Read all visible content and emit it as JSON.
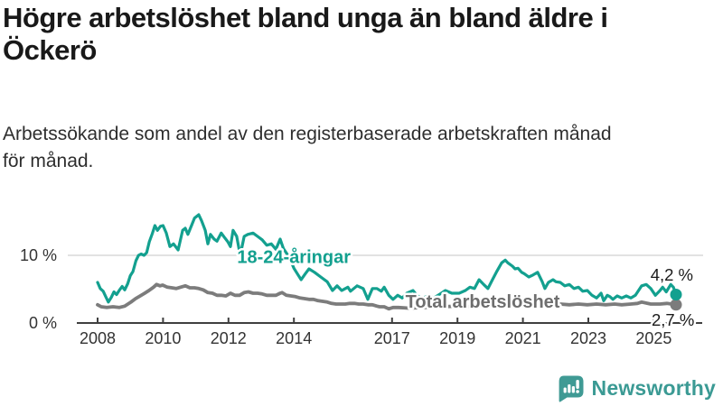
{
  "header": {
    "title": "Högre arbetslöshet bland unga än bland äldre i\nÖckerö",
    "subtitle": "Arbetssökande som andel av den registerbaserade arbetskraften månad\nför månad."
  },
  "footer": {
    "brand": "Newsworthy",
    "brand_color": "#3b9a94",
    "logo_icon": "speech-bubble-bar-chart-icon"
  },
  "chart_data": {
    "type": "line",
    "unit": "%",
    "title": "Högre arbetslöshet bland unga än bland äldre i Öckerö",
    "xlabel": "",
    "ylabel": "Arbetssökande som andel av den registerbaserade arbetskraften",
    "xlim": [
      2007.8,
      2026.3
    ],
    "ylim": [
      0,
      17
    ],
    "grid": "horizontal-10-only",
    "legend_position": "inline-labels",
    "x_ticks": [
      {
        "t": 2008,
        "label": "2008"
      },
      {
        "t": 2010,
        "label": "2010"
      },
      {
        "t": 2012,
        "label": "2012"
      },
      {
        "t": 2014,
        "label": "2014"
      },
      {
        "t": 2017,
        "label": "2017"
      },
      {
        "t": 2019,
        "label": "2019"
      },
      {
        "t": 2021,
        "label": "2021"
      },
      {
        "t": 2023,
        "label": "2023"
      },
      {
        "t": 2025,
        "label": "2025"
      }
    ],
    "y_ticks": [
      {
        "value": 0,
        "label": "0 %",
        "grid": false
      },
      {
        "value": 10,
        "label": "10 %",
        "grid": true
      }
    ],
    "annotations": [
      {
        "text": "18-24-åringar",
        "x": 2014.0,
        "y": 8.9,
        "color": "#13a08f"
      },
      {
        "text": "Total arbetslöshet",
        "x": 2019.77,
        "y": 2.27,
        "color": "#6e6e6e"
      }
    ],
    "series": [
      {
        "name": "Total arbetslöshet",
        "color": "#7c7c7c",
        "end_label": "2,7 %",
        "end_value": 2.7,
        "points": [
          [
            2008.0,
            2.7
          ],
          [
            2008.11,
            2.4
          ],
          [
            2008.28,
            2.3
          ],
          [
            2008.47,
            2.4
          ],
          [
            2008.66,
            2.3
          ],
          [
            2008.83,
            2.5
          ],
          [
            2009.02,
            3.1
          ],
          [
            2009.16,
            3.6
          ],
          [
            2009.3,
            4.0
          ],
          [
            2009.44,
            4.4
          ],
          [
            2009.57,
            4.8
          ],
          [
            2009.71,
            5.3
          ],
          [
            2009.8,
            5.7
          ],
          [
            2009.91,
            5.5
          ],
          [
            2009.99,
            5.6
          ],
          [
            2010.13,
            5.3
          ],
          [
            2010.27,
            5.2
          ],
          [
            2010.4,
            5.1
          ],
          [
            2010.54,
            5.3
          ],
          [
            2010.68,
            5.5
          ],
          [
            2010.82,
            5.2
          ],
          [
            2010.96,
            5.2
          ],
          [
            2011.09,
            5.1
          ],
          [
            2011.23,
            4.9
          ],
          [
            2011.37,
            4.5
          ],
          [
            2011.51,
            4.4
          ],
          [
            2011.65,
            4.1
          ],
          [
            2011.78,
            4.1
          ],
          [
            2011.92,
            4.0
          ],
          [
            2012.06,
            4.4
          ],
          [
            2012.2,
            4.1
          ],
          [
            2012.34,
            4.1
          ],
          [
            2012.48,
            4.5
          ],
          [
            2012.61,
            4.6
          ],
          [
            2012.75,
            4.4
          ],
          [
            2012.89,
            4.4
          ],
          [
            2013.03,
            4.3
          ],
          [
            2013.17,
            4.1
          ],
          [
            2013.31,
            4.1
          ],
          [
            2013.45,
            4.1
          ],
          [
            2013.58,
            4.4
          ],
          [
            2013.64,
            4.5
          ],
          [
            2013.77,
            4.1
          ],
          [
            2013.91,
            4.0
          ],
          [
            2014.05,
            3.9
          ],
          [
            2014.19,
            3.7
          ],
          [
            2014.33,
            3.6
          ],
          [
            2014.46,
            3.5
          ],
          [
            2014.6,
            3.5
          ],
          [
            2014.74,
            3.3
          ],
          [
            2014.88,
            3.2
          ],
          [
            2015.02,
            3.1
          ],
          [
            2015.15,
            2.9
          ],
          [
            2015.29,
            2.8
          ],
          [
            2015.43,
            2.8
          ],
          [
            2015.57,
            2.8
          ],
          [
            2015.71,
            2.9
          ],
          [
            2015.85,
            2.9
          ],
          [
            2015.98,
            2.8
          ],
          [
            2016.12,
            2.8
          ],
          [
            2016.26,
            2.7
          ],
          [
            2016.4,
            2.7
          ],
          [
            2016.54,
            2.5
          ],
          [
            2016.62,
            2.4
          ],
          [
            2016.76,
            2.4
          ],
          [
            2016.9,
            2.1
          ],
          [
            2017.03,
            2.3
          ],
          [
            2017.2,
            2.3
          ],
          [
            2017.5,
            2.2
          ],
          [
            2018.0,
            2.3
          ],
          [
            2018.5,
            2.4
          ],
          [
            2019.0,
            2.5
          ],
          [
            2019.5,
            2.4
          ],
          [
            2020.0,
            2.8
          ],
          [
            2020.3,
            3.2
          ],
          [
            2020.5,
            3.4
          ],
          [
            2020.8,
            3.3
          ],
          [
            2021.0,
            3.2
          ],
          [
            2021.3,
            3.0
          ],
          [
            2021.6,
            2.9
          ],
          [
            2022.0,
            2.8
          ],
          [
            2022.14,
            2.8
          ],
          [
            2022.42,
            2.7
          ],
          [
            2022.7,
            2.8
          ],
          [
            2022.97,
            2.7
          ],
          [
            2023.25,
            2.8
          ],
          [
            2023.53,
            2.7
          ],
          [
            2023.8,
            2.8
          ],
          [
            2024.02,
            2.7
          ],
          [
            2024.3,
            2.8
          ],
          [
            2024.5,
            2.9
          ],
          [
            2024.63,
            3.1
          ],
          [
            2024.91,
            2.8
          ],
          [
            2025.19,
            2.8
          ],
          [
            2025.4,
            2.9
          ],
          [
            2025.55,
            2.8
          ],
          [
            2025.68,
            2.7
          ]
        ]
      },
      {
        "name": "18-24-åringar",
        "color": "#13a08f",
        "end_label": "4,2 %",
        "end_value": 4.2,
        "points": [
          [
            2008.0,
            6.0
          ],
          [
            2008.08,
            5.1
          ],
          [
            2008.17,
            4.7
          ],
          [
            2008.25,
            3.9
          ],
          [
            2008.33,
            3.1
          ],
          [
            2008.42,
            3.8
          ],
          [
            2008.5,
            4.6
          ],
          [
            2008.58,
            4.2
          ],
          [
            2008.67,
            4.9
          ],
          [
            2008.75,
            5.4
          ],
          [
            2008.83,
            4.9
          ],
          [
            2008.92,
            5.8
          ],
          [
            2009.0,
            7.0
          ],
          [
            2009.08,
            7.6
          ],
          [
            2009.17,
            9.2
          ],
          [
            2009.25,
            10.0
          ],
          [
            2009.33,
            10.2
          ],
          [
            2009.42,
            10.0
          ],
          [
            2009.5,
            10.4
          ],
          [
            2009.58,
            12.0
          ],
          [
            2009.67,
            13.2
          ],
          [
            2009.75,
            14.4
          ],
          [
            2009.83,
            13.7
          ],
          [
            2009.92,
            14.3
          ],
          [
            2010.0,
            14.4
          ],
          [
            2010.1,
            13.3
          ],
          [
            2010.21,
            11.3
          ],
          [
            2010.32,
            11.7
          ],
          [
            2010.46,
            10.8
          ],
          [
            2010.6,
            13.7
          ],
          [
            2010.68,
            14.0
          ],
          [
            2010.76,
            13.1
          ],
          [
            2010.87,
            14.4
          ],
          [
            2010.96,
            15.5
          ],
          [
            2011.09,
            16.0
          ],
          [
            2011.18,
            15.1
          ],
          [
            2011.29,
            13.7
          ],
          [
            2011.37,
            11.7
          ],
          [
            2011.45,
            13.1
          ],
          [
            2011.56,
            12.4
          ],
          [
            2011.65,
            12.1
          ],
          [
            2011.78,
            13.3
          ],
          [
            2011.87,
            12.7
          ],
          [
            2011.98,
            12.0
          ],
          [
            2012.06,
            11.3
          ],
          [
            2012.14,
            13.7
          ],
          [
            2012.25,
            12.8
          ],
          [
            2012.36,
            10.0
          ],
          [
            2012.48,
            12.8
          ],
          [
            2012.59,
            13.1
          ],
          [
            2012.75,
            13.3
          ],
          [
            2012.89,
            12.8
          ],
          [
            2013.03,
            12.3
          ],
          [
            2013.17,
            11.5
          ],
          [
            2013.31,
            11.7
          ],
          [
            2013.45,
            10.9
          ],
          [
            2013.58,
            12.4
          ],
          [
            2013.68,
            11.0
          ],
          [
            2013.86,
            9.7
          ],
          [
            2014.0,
            8.1
          ],
          [
            2014.13,
            7.1
          ],
          [
            2014.22,
            6.4
          ],
          [
            2014.35,
            7.3
          ],
          [
            2014.46,
            8.0
          ],
          [
            2014.63,
            7.5
          ],
          [
            2014.82,
            6.8
          ],
          [
            2015.02,
            6.1
          ],
          [
            2015.18,
            4.8
          ],
          [
            2015.32,
            5.5
          ],
          [
            2015.46,
            4.8
          ],
          [
            2015.65,
            5.3
          ],
          [
            2015.73,
            4.7
          ],
          [
            2015.93,
            5.5
          ],
          [
            2016.12,
            5.1
          ],
          [
            2016.26,
            3.5
          ],
          [
            2016.4,
            5.1
          ],
          [
            2016.54,
            5.1
          ],
          [
            2016.67,
            4.7
          ],
          [
            2016.76,
            5.3
          ],
          [
            2016.9,
            4.1
          ],
          [
            2017.03,
            3.5
          ],
          [
            2017.17,
            4.1
          ],
          [
            2017.31,
            3.7
          ],
          [
            2017.45,
            4.4
          ],
          [
            2017.64,
            4.8
          ],
          [
            2017.78,
            4.0
          ],
          [
            2017.94,
            3.7
          ],
          [
            2018.14,
            4.1
          ],
          [
            2018.27,
            3.7
          ],
          [
            2018.47,
            4.3
          ],
          [
            2018.63,
            4.8
          ],
          [
            2018.83,
            4.4
          ],
          [
            2019.05,
            4.4
          ],
          [
            2019.24,
            4.8
          ],
          [
            2019.38,
            5.3
          ],
          [
            2019.52,
            5.1
          ],
          [
            2019.66,
            6.4
          ],
          [
            2019.8,
            5.7
          ],
          [
            2019.93,
            5.1
          ],
          [
            2020.07,
            6.4
          ],
          [
            2020.21,
            7.7
          ],
          [
            2020.35,
            8.9
          ],
          [
            2020.46,
            9.3
          ],
          [
            2020.54,
            8.9
          ],
          [
            2020.68,
            8.4
          ],
          [
            2020.76,
            8.0
          ],
          [
            2020.85,
            8.1
          ],
          [
            2020.96,
            7.5
          ],
          [
            2021.04,
            7.3
          ],
          [
            2021.18,
            6.8
          ],
          [
            2021.31,
            7.1
          ],
          [
            2021.45,
            7.5
          ],
          [
            2021.59,
            6.1
          ],
          [
            2021.67,
            5.1
          ],
          [
            2021.78,
            6.0
          ],
          [
            2021.92,
            6.4
          ],
          [
            2022.01,
            6.1
          ],
          [
            2022.14,
            6.0
          ],
          [
            2022.28,
            5.5
          ],
          [
            2022.42,
            5.7
          ],
          [
            2022.56,
            5.1
          ],
          [
            2022.7,
            5.3
          ],
          [
            2022.83,
            4.7
          ],
          [
            2022.97,
            4.8
          ],
          [
            2023.11,
            4.1
          ],
          [
            2023.25,
            3.7
          ],
          [
            2023.39,
            4.4
          ],
          [
            2023.47,
            3.3
          ],
          [
            2023.58,
            4.1
          ],
          [
            2023.66,
            3.9
          ],
          [
            2023.75,
            3.5
          ],
          [
            2023.88,
            4.0
          ],
          [
            2024.02,
            3.7
          ],
          [
            2024.16,
            4.0
          ],
          [
            2024.3,
            3.7
          ],
          [
            2024.44,
            4.1
          ],
          [
            2024.63,
            5.5
          ],
          [
            2024.77,
            5.7
          ],
          [
            2024.91,
            5.1
          ],
          [
            2025.05,
            4.1
          ],
          [
            2025.19,
            4.8
          ],
          [
            2025.27,
            5.3
          ],
          [
            2025.38,
            4.6
          ],
          [
            2025.52,
            5.7
          ],
          [
            2025.6,
            5.3
          ],
          [
            2025.68,
            4.2
          ]
        ]
      }
    ]
  }
}
